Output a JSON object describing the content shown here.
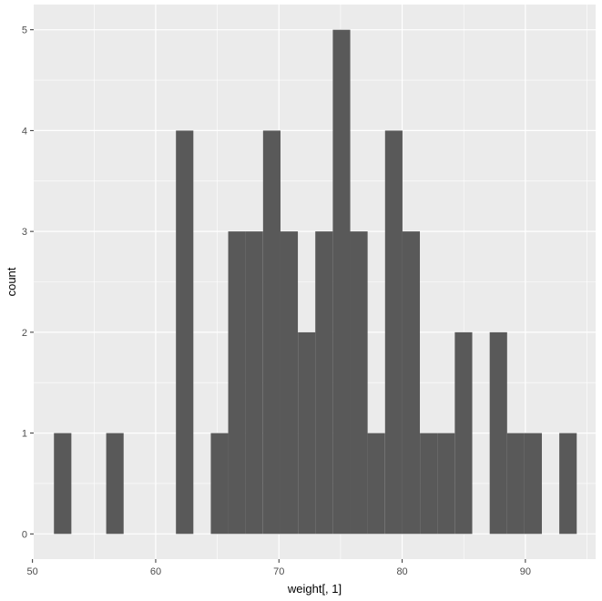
{
  "chart_data": {
    "type": "bar",
    "subtype": "histogram",
    "title": "",
    "xlabel": "weight[, 1]",
    "ylabel": "count",
    "xlim": [
      50.1,
      95.7
    ],
    "ylim": [
      -0.25,
      5.25
    ],
    "x_ticks": [
      50,
      60,
      70,
      80,
      90
    ],
    "y_ticks": [
      0,
      1,
      2,
      3,
      4,
      5
    ],
    "x_tick_labels": [
      "50",
      "60",
      "70",
      "80",
      "90"
    ],
    "y_tick_labels": [
      "0",
      "1",
      "2",
      "3",
      "4",
      "5"
    ],
    "grid": true,
    "bin_width": 1.414,
    "bins": [
      {
        "x": 52.45,
        "count": 1
      },
      {
        "x": 56.69,
        "count": 1
      },
      {
        "x": 62.35,
        "count": 4
      },
      {
        "x": 65.18,
        "count": 1
      },
      {
        "x": 66.59,
        "count": 3
      },
      {
        "x": 68.0,
        "count": 3
      },
      {
        "x": 69.42,
        "count": 4
      },
      {
        "x": 70.83,
        "count": 3
      },
      {
        "x": 72.25,
        "count": 2
      },
      {
        "x": 73.66,
        "count": 3
      },
      {
        "x": 75.08,
        "count": 5
      },
      {
        "x": 76.49,
        "count": 3
      },
      {
        "x": 77.9,
        "count": 1
      },
      {
        "x": 79.32,
        "count": 4
      },
      {
        "x": 80.73,
        "count": 3
      },
      {
        "x": 82.15,
        "count": 1
      },
      {
        "x": 83.56,
        "count": 1
      },
      {
        "x": 84.98,
        "count": 2
      },
      {
        "x": 87.81,
        "count": 2
      },
      {
        "x": 89.22,
        "count": 1
      },
      {
        "x": 90.63,
        "count": 1
      },
      {
        "x": 93.46,
        "count": 1
      }
    ],
    "colors": {
      "panel": "#ebebeb",
      "grid_major": "#ffffff",
      "bar": "#595959",
      "tick": "#333333"
    }
  }
}
